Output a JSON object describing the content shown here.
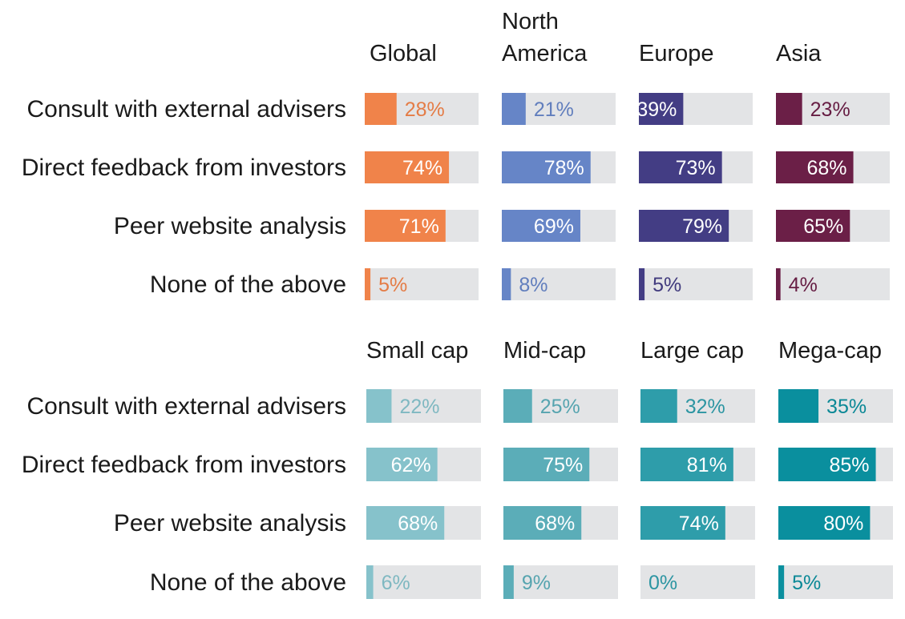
{
  "chart_data": [
    {
      "type": "bar",
      "orientation": "horizontal",
      "layout": "small-multiples",
      "categories": [
        "Consult with external advisers",
        "Direct feedback from investors",
        "Peer website analysis",
        "None of the above"
      ],
      "ylim": [
        0,
        100
      ],
      "series": [
        {
          "name": "Global",
          "values": [
            28,
            74,
            71,
            5
          ],
          "color": "#F0834A"
        },
        {
          "name": "North\nAmerica",
          "values": [
            21,
            78,
            69,
            8
          ],
          "color": "#6685C7"
        },
        {
          "name": "Europe",
          "values": [
            39,
            73,
            79,
            5
          ],
          "color": "#433D84"
        },
        {
          "name": "Asia",
          "values": [
            23,
            68,
            65,
            4
          ],
          "color": "#6B1F47"
        }
      ]
    },
    {
      "type": "bar",
      "orientation": "horizontal",
      "layout": "small-multiples",
      "categories": [
        "Consult with external advisers",
        "Direct feedback from investors",
        "Peer website analysis",
        "None of the above"
      ],
      "ylim": [
        0,
        100
      ],
      "series": [
        {
          "name": "Small cap",
          "values": [
            22,
            62,
            68,
            6
          ],
          "color": "#86C2CB"
        },
        {
          "name": "Mid-cap",
          "values": [
            25,
            75,
            68,
            9
          ],
          "color": "#5BADB8"
        },
        {
          "name": "Large cap",
          "values": [
            32,
            81,
            74,
            0
          ],
          "color": "#2E9DAA"
        },
        {
          "name": "Mega-cap",
          "values": [
            35,
            85,
            80,
            5
          ],
          "color": "#0A8F9E"
        }
      ]
    }
  ],
  "style": {
    "track_color": "#E3E4E6",
    "label_color": "#1A1A1A",
    "inside_label_color": "#FFFFFF",
    "value_suffix": "%"
  }
}
